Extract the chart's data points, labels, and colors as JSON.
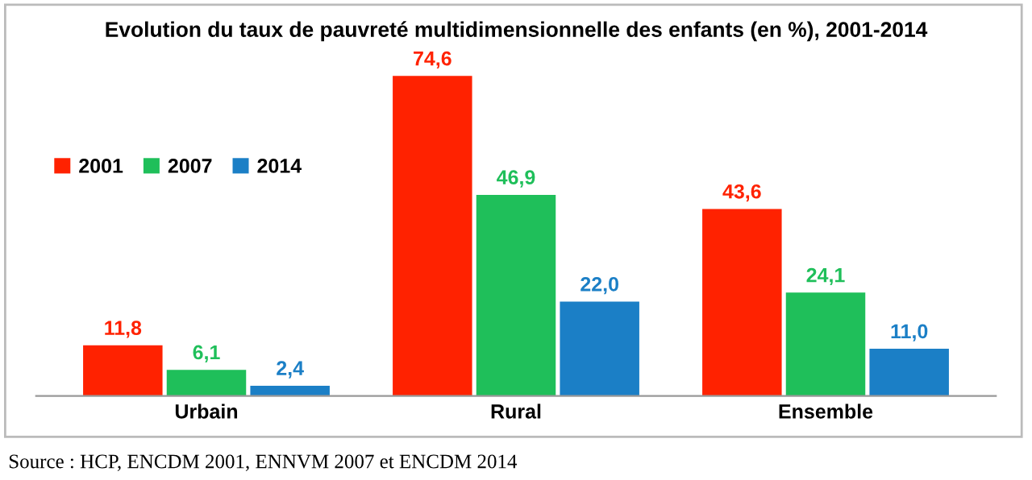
{
  "chart_data": {
    "type": "bar",
    "title": "Evolution du taux de pauvreté multidimensionnelle des enfants (en %), 2001-2014",
    "categories": [
      "Urbain",
      "Rural",
      "Ensemble"
    ],
    "series": [
      {
        "name": "2001",
        "color": "#ff2200",
        "values": [
          11.8,
          74.6,
          43.6
        ],
        "value_labels": [
          "11,8",
          "74,6",
          "43,6"
        ]
      },
      {
        "name": "2007",
        "color": "#1fbf5a",
        "values": [
          6.1,
          46.9,
          24.1
        ],
        "value_labels": [
          "6,1",
          "46,9",
          "24,1"
        ]
      },
      {
        "name": "2014",
        "color": "#1b7fc6",
        "values": [
          2.4,
          22.0,
          11.0
        ],
        "value_labels": [
          "2,4",
          "22,0",
          "11,0"
        ]
      }
    ],
    "legend": "top left",
    "grid": false,
    "annotations": [
      "Source : HCP, ENCDM 2001, ENNVM 2007 et ENCDM 2014"
    ]
  }
}
